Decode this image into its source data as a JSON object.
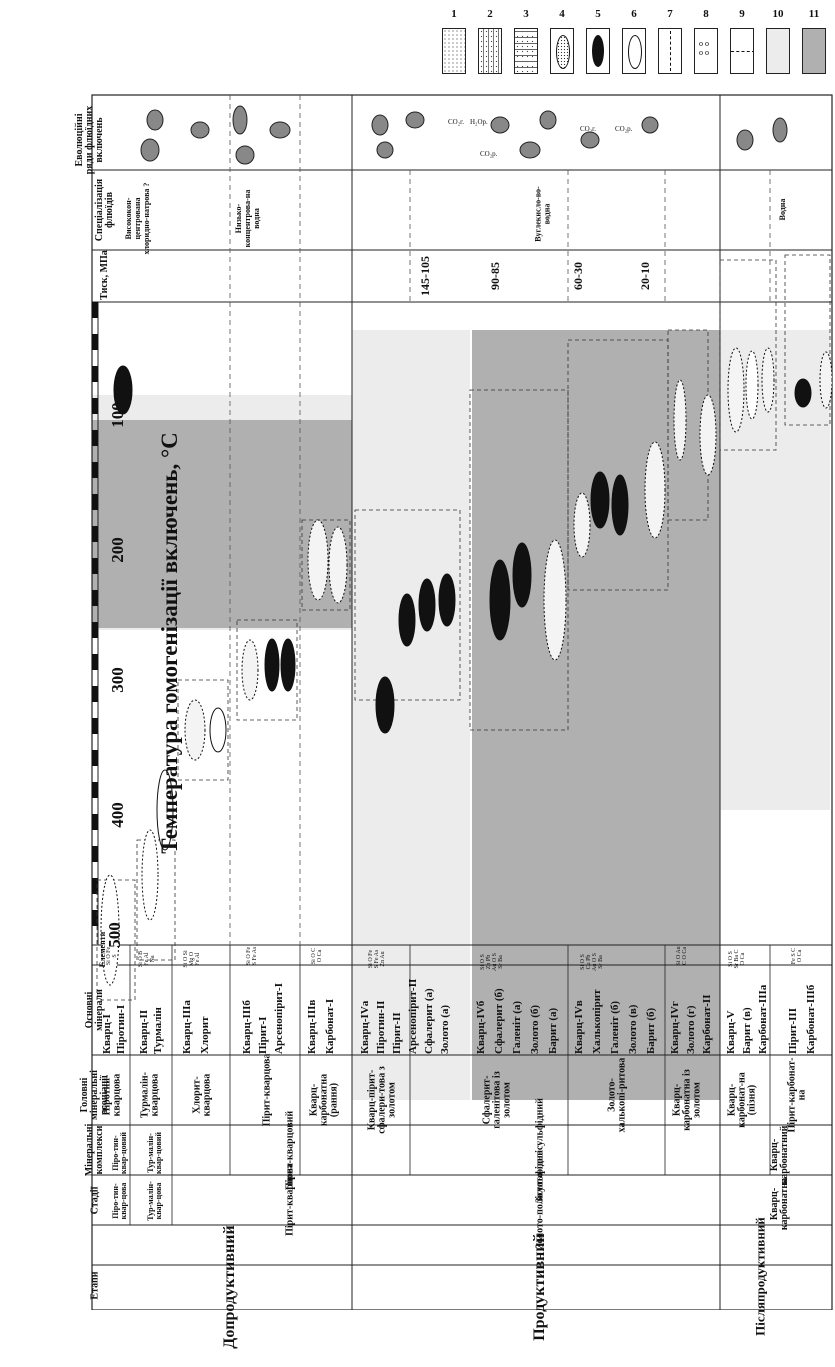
{
  "legend": [
    "1",
    "2",
    "3",
    "4",
    "5",
    "6",
    "7",
    "8",
    "9",
    "10",
    "11"
  ],
  "headers": {
    "etap": "Етапи",
    "stadii": "Стадії",
    "kompleksy": "Мінеральні комплекси",
    "asotsiatsii": "Головні мінеральні асоціації",
    "minerals": "Основні мінерали",
    "elements": "Елементи",
    "pressure": "Тиск, МПа",
    "fluid": "Спеціалізація флюїдів",
    "evolution": "Еволюційні ряди флюїдних включень"
  },
  "axis": {
    "title": "Температура гомогенізації включень, °С",
    "ticks": [
      "500",
      "400",
      "300",
      "200",
      "100"
    ]
  },
  "etapy": [
    "Допродуктивний",
    "Продуктивний",
    "Післяпродуктивний"
  ],
  "stadii": [
    "Піро-тин-квар-цова",
    "Тур-малін-квар-цова",
    "Пірит-кварцова",
    "Золото-поліс­ульфідна",
    "Кварц-карбонатна"
  ],
  "kompleksy": [
    "Піро-тин-квар-цовий",
    "Тур-малін-квар-цовий",
    "Пірит-кварцовий",
    "Золото-полісульфідний",
    "Кварц-карбонатний"
  ],
  "asotsiatsii": [
    "Піротин-кварцова",
    "Турмалін-кварцова",
    "Хлорит-кварцова",
    "Пірит-кварцова",
    "Кварц-карбонатна (рання)",
    "Кварц-пірит-сфалери-това з золотом",
    "Сфалерит-галенітова із золотом",
    "Золото-халькопі-ритова",
    "Кварц-карбонатна із золотом",
    "Кварц-карбонат-на (пізня)",
    "Пірит-карбонат-на"
  ],
  "minerals": [
    "Кварц-I",
    "Піротин-I",
    "Кварц-II",
    "Турмалін",
    "Кварц-IIIа",
    "Хлорит",
    "Кварц-IIIб",
    "Пірит-I",
    "Арсенопірит-I",
    "Кварц-IIIв",
    "Карбонат-I",
    "Кварц-IVа",
    "Піротин-II",
    "Пірит-II",
    "Арсенопірит-II",
    "Сфалерит (а)",
    "Золото (а)",
    "Кварц-IVб",
    "Сфалерит (б)",
    "Галеніт (а)",
    "Золото (б)",
    "Барит (а)",
    "Кварц-IVв",
    "Халькопірит",
    "Галеніт (б)",
    "Золото (в)",
    "Барит (б)",
    "Кварц-IVг",
    "Золото (г)",
    "Карбонат-II",
    "Кварц-V",
    "Барит (в)",
    "Карбонат-IIIа",
    "Пірит-III",
    "Карбонат-IIIб"
  ],
  "elements": [
    "Si O Fe S",
    "Si O B Fe Al Na",
    "Si O Si Mg O Fe Al",
    "Si O Fe S Fe As",
    "Si O C O Ca",
    "Si O Fe S Fe As Zn Au",
    "Si O S Zn Pb Au O S Sr Ba",
    "Si O S Cu Pb Au O S Sr Ba",
    "Si O Au C O Ca",
    "Si O S Sr Ba C O Ca",
    "Fe S C O Ca"
  ],
  "pressure": [
    "145-105",
    "90-85",
    "60-30",
    "20-10"
  ],
  "fluid": [
    "Висококон-центрована хлоридно-натрова ?",
    "Низько-концентрова-на водна",
    "Вуглекисло-во-водна",
    "Водна"
  ],
  "evolution_labels": [
    "CO₂г.",
    "H₂Oр.",
    "CO₂р.",
    "CO₂г.",
    "CO₂р."
  ],
  "colors": {
    "light": "#ececec",
    "dark": "#b0b0b0",
    "line": "#222222"
  }
}
